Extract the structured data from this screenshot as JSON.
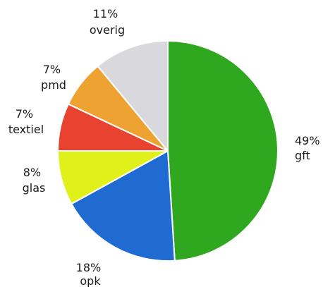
{
  "chart_data": {
    "type": "pie",
    "title": "",
    "slices": [
      {
        "label": "gft",
        "percent_text": "49%",
        "value": 49,
        "color": "#2fa81f"
      },
      {
        "label": "opk",
        "percent_text": "18%",
        "value": 18,
        "color": "#1f6bd1"
      },
      {
        "label": "glas",
        "percent_text": "8%",
        "value": 8,
        "color": "#e0f01a"
      },
      {
        "label": "textiel",
        "percent_text": "7%",
        "value": 7,
        "color": "#e84331"
      },
      {
        "label": "pmd",
        "percent_text": "7%",
        "value": 7,
        "color": "#eda232"
      },
      {
        "label": "overig",
        "percent_text": "11%",
        "value": 11,
        "color": "#d8d8dd"
      }
    ]
  }
}
